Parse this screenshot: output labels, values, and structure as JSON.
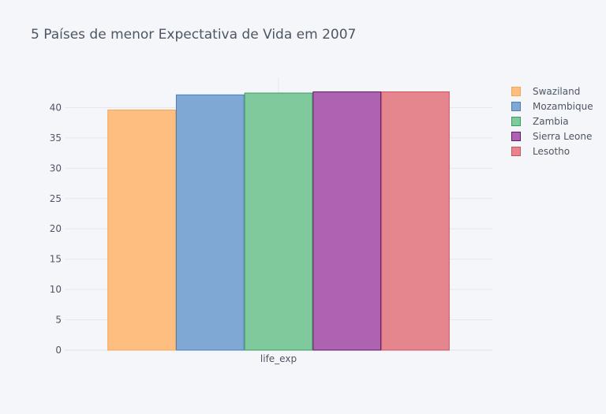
{
  "chart_data": {
    "type": "bar",
    "title": "5 Países de menor Expectativa de Vida em 2007",
    "categories": [
      "life_exp"
    ],
    "series": [
      {
        "name": "Swaziland",
        "values": [
          39.6
        ],
        "color": "#fdbe7f",
        "border": "#f5a55a"
      },
      {
        "name": "Mozambique",
        "values": [
          42.1
        ],
        "color": "#7fa9d4",
        "border": "#4a7fb5"
      },
      {
        "name": "Zambia",
        "values": [
          42.4
        ],
        "color": "#80c99c",
        "border": "#3d9c63"
      },
      {
        "name": "Sierra Leone",
        "values": [
          42.6
        ],
        "color": "#ae63b2",
        "border": "#5c1e66"
      },
      {
        "name": "Lesotho",
        "values": [
          42.6
        ],
        "color": "#e5868f",
        "border": "#c95262"
      }
    ],
    "ylim": [
      0,
      45
    ],
    "yticks": [
      0,
      5,
      10,
      15,
      20,
      25,
      30,
      35,
      40
    ],
    "xlabel": "",
    "ylabel": "",
    "grid": true,
    "legend_position": "top-right"
  }
}
